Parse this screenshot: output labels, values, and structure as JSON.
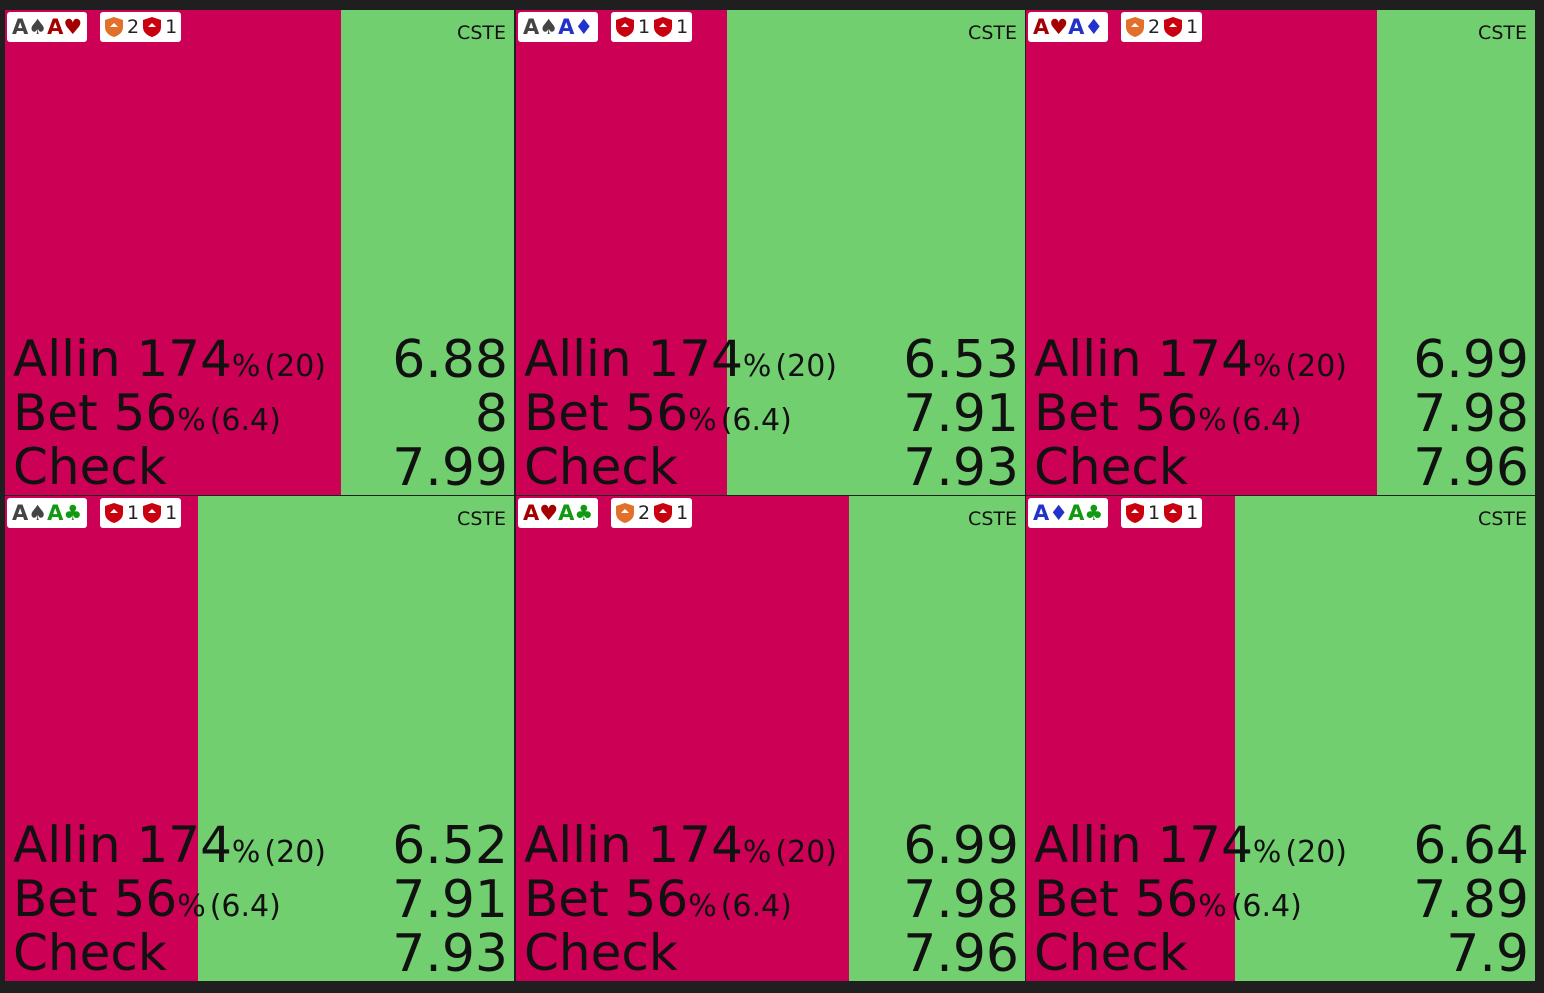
{
  "cells": [
    {
      "cards": [
        {
          "text": "A♠",
          "color": "#444444"
        },
        {
          "text": "A♥",
          "color": "#a50000"
        }
      ],
      "badges": [
        {
          "color": "#e0702a",
          "count": 2
        },
        {
          "color": "#c80010",
          "count": 1
        }
      ],
      "tag": "CSTE",
      "allin_share": 66,
      "actions": [
        {
          "name": "Allin 174",
          "unit": "%",
          "detail": "(20)",
          "value": 6.88
        },
        {
          "name": "Bet 56",
          "unit": "%",
          "detail": "(6.4)",
          "value": 8
        },
        {
          "name": "Check",
          "value": 7.99
        }
      ]
    },
    {
      "cards": [
        {
          "text": "A♠",
          "color": "#444444"
        },
        {
          "text": "A♦",
          "color": "#2233cc"
        }
      ],
      "badges": [
        {
          "color": "#c80010",
          "count": 1
        },
        {
          "color": "#c80010",
          "count": 1
        }
      ],
      "tag": "CSTE",
      "allin_share": 41.5,
      "actions": [
        {
          "name": "Allin 174",
          "unit": "%",
          "detail": "(20)",
          "value": 6.53
        },
        {
          "name": "Bet 56",
          "unit": "%",
          "detail": "(6.4)",
          "value": 7.91
        },
        {
          "name": "Check",
          "value": 7.93
        }
      ]
    },
    {
      "cards": [
        {
          "text": "A♥",
          "color": "#a50000"
        },
        {
          "text": "A♦",
          "color": "#2233cc"
        }
      ],
      "badges": [
        {
          "color": "#e0702a",
          "count": 2
        },
        {
          "color": "#c80010",
          "count": 1
        }
      ],
      "tag": "CSTE",
      "allin_share": 69,
      "actions": [
        {
          "name": "Allin 174",
          "unit": "%",
          "detail": "(20)",
          "value": 6.99
        },
        {
          "name": "Bet 56",
          "unit": "%",
          "detail": "(6.4)",
          "value": 7.98
        },
        {
          "name": "Check",
          "value": 7.96
        }
      ]
    },
    {
      "cards": [
        {
          "text": "A♠",
          "color": "#444444"
        },
        {
          "text": "A♣",
          "color": "#119911"
        }
      ],
      "badges": [
        {
          "color": "#c80010",
          "count": 1
        },
        {
          "color": "#c80010",
          "count": 1
        }
      ],
      "tag": "CSTE",
      "allin_share": 38,
      "actions": [
        {
          "name": "Allin 174",
          "unit": "%",
          "detail": "(20)",
          "value": 6.52
        },
        {
          "name": "Bet 56",
          "unit": "%",
          "detail": "(6.4)",
          "value": 7.91
        },
        {
          "name": "Check",
          "value": 7.93
        }
      ]
    },
    {
      "cards": [
        {
          "text": "A♥",
          "color": "#a50000"
        },
        {
          "text": "A♣",
          "color": "#119911"
        }
      ],
      "badges": [
        {
          "color": "#e0702a",
          "count": 2
        },
        {
          "color": "#c80010",
          "count": 1
        }
      ],
      "tag": "CSTE",
      "allin_share": 65.5,
      "actions": [
        {
          "name": "Allin 174",
          "unit": "%",
          "detail": "(20)",
          "value": 6.99
        },
        {
          "name": "Bet 56",
          "unit": "%",
          "detail": "(6.4)",
          "value": 7.98
        },
        {
          "name": "Check",
          "value": 7.96
        }
      ]
    },
    {
      "cards": [
        {
          "text": "A♦",
          "color": "#2233cc"
        },
        {
          "text": "A♣",
          "color": "#119911"
        }
      ],
      "badges": [
        {
          "color": "#c80010",
          "count": 1
        },
        {
          "color": "#c80010",
          "count": 1
        }
      ],
      "tag": "CSTE",
      "allin_share": 41,
      "actions": [
        {
          "name": "Allin 174",
          "unit": "%",
          "detail": "(20)",
          "value": 6.64
        },
        {
          "name": "Bet 56",
          "unit": "%",
          "detail": "(6.4)",
          "value": 7.89
        },
        {
          "name": "Check",
          "value": 7.9
        }
      ]
    }
  ]
}
